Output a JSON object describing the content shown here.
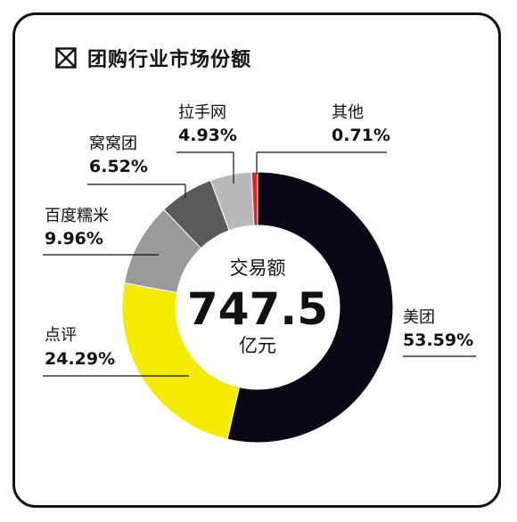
{
  "header": {
    "title": "团购行业市场份额",
    "icon": "boxed-x-icon"
  },
  "center": {
    "label": "交易额",
    "value": "747.5",
    "unit": "亿元"
  },
  "chart_data": {
    "type": "pie",
    "title": "团购行业市场份额",
    "donut": true,
    "categories": [
      "美团",
      "点评",
      "百度糯米",
      "窝窝团",
      "拉手网",
      "其他"
    ],
    "values": [
      53.59,
      24.29,
      9.96,
      6.52,
      4.93,
      0.71
    ],
    "value_labels": [
      "53.59%",
      "24.29%",
      "9.96%",
      "6.52%",
      "4.93%",
      "0.71%"
    ],
    "colors": [
      "#0b0716",
      "#f5eb00",
      "#9a9a9c",
      "#5a5a5c",
      "#b9b9bb",
      "#e3202c"
    ],
    "start": "12 o'clock, clockwise",
    "legend": "none (direct labels)"
  }
}
